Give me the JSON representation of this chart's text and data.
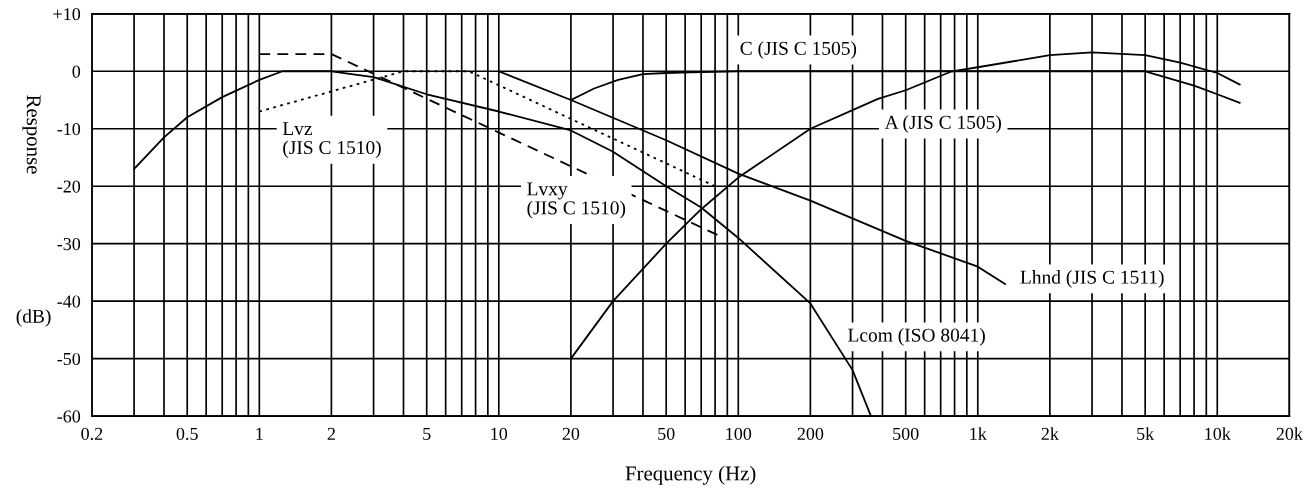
{
  "chart_data": {
    "type": "line",
    "xlabel": "Frequency (Hz)",
    "ylabel": "Response",
    "log": "x",
    "grid": true,
    "marker": "none",
    "xlim": [
      0.2,
      20000
    ],
    "ylim": [
      -60,
      10
    ],
    "xticks": [
      0.2,
      {
        "value": 0.3,
        "label": null
      },
      {
        "value": 0.4,
        "label": null
      },
      0.5,
      {
        "value": 0.6,
        "label": null
      },
      {
        "value": 0.7,
        "label": null
      },
      {
        "value": 0.8,
        "label": null
      },
      {
        "value": 0.9,
        "label": null
      },
      1,
      2,
      {
        "value": 3,
        "label": null
      },
      {
        "value": 4,
        "label": null
      },
      5,
      {
        "value": 6,
        "label": null
      },
      {
        "value": 7,
        "label": null
      },
      {
        "value": 8,
        "label": null
      },
      {
        "value": 9,
        "label": null
      },
      10,
      20,
      {
        "value": 30,
        "label": null
      },
      {
        "value": 40,
        "label": null
      },
      50,
      {
        "value": 60,
        "label": null
      },
      {
        "value": 70,
        "label": null
      },
      {
        "value": 80,
        "label": null
      },
      {
        "value": 90,
        "label": null
      },
      100,
      200,
      {
        "value": 300,
        "label": null
      },
      {
        "value": 400,
        "label": null
      },
      500,
      {
        "value": 600,
        "label": null
      },
      {
        "value": 700,
        "label": null
      },
      {
        "value": 800,
        "label": null
      },
      {
        "value": 900,
        "label": null
      },
      {
        "value": 1000,
        "label": "1k"
      },
      {
        "value": 2000,
        "label": "2k"
      },
      {
        "value": 3000,
        "label": null
      },
      {
        "value": 4000,
        "label": null
      },
      {
        "value": 5000,
        "label": "5k"
      },
      {
        "value": 6000,
        "label": null
      },
      {
        "value": 7000,
        "label": null
      },
      {
        "value": 8000,
        "label": null
      },
      {
        "value": 9000,
        "label": null
      },
      {
        "value": 10000,
        "label": "10k"
      },
      {
        "value": 20000,
        "label": "20k"
      }
    ],
    "yticks": [
      {
        "value": 10,
        "label": "+10"
      },
      0,
      -10,
      -20,
      -30,
      -40,
      -50,
      -60
    ],
    "series": [
      {
        "name": "Lcom (ISO 8041)",
        "color": "#000000",
        "line_style": "solid",
        "x": [
          0.3,
          0.4,
          0.5,
          0.7,
          1,
          1.25,
          2,
          3,
          5,
          10,
          20,
          30,
          50,
          70,
          100,
          200,
          300,
          358
        ],
        "values": [
          -17,
          -11.5,
          -8,
          -4.5,
          -1.5,
          0,
          0,
          -1,
          -4,
          -7,
          -10.3,
          -14,
          -20,
          -23.7,
          -29,
          -40.4,
          -52,
          -60
        ]
      },
      {
        "name": "Lhnd (JIS C 1511)",
        "color": "#000000",
        "line_style": "solid",
        "x": [
          10,
          20,
          50,
          100,
          200,
          500,
          1000,
          1300
        ],
        "values": [
          0,
          -5,
          -12,
          -17.8,
          -22.5,
          -29.5,
          -34,
          -37
        ]
      },
      {
        "name": "C (JIS C 1505)",
        "color": "#000000",
        "line_style": "solid",
        "x": [
          20,
          25,
          31.5,
          40,
          50,
          63,
          100,
          1000,
          5000,
          8000,
          10000,
          12400
        ],
        "values": [
          -5,
          -3,
          -1.5,
          -0.5,
          -0.3,
          -0.2,
          0,
          0,
          0,
          -2.5,
          -4,
          -5.5
        ]
      },
      {
        "name": "A (JIS C 1505)",
        "color": "#000000",
        "line_style": "solid",
        "x": [
          20,
          30,
          50,
          70,
          100,
          200,
          383,
          500,
          780,
          1000,
          2000,
          3000,
          5000,
          7000,
          10000,
          12400
        ],
        "values": [
          -50,
          -40,
          -30,
          -24,
          -18.5,
          -10,
          -4.8,
          -3.3,
          0,
          0.7,
          2.8,
          3.3,
          2.8,
          1.5,
          -0.3,
          -2.3
        ]
      },
      {
        "name": "Lvxy\n(JIS C 1510)",
        "color": "#000000",
        "line_style": "dashed",
        "x": [
          1,
          2,
          82
        ],
        "values": [
          3,
          3,
          -28.5
        ]
      },
      {
        "name": "Lvz\n(JIS C 1510)",
        "color": "#000000",
        "line_style": "dotted",
        "x": [
          1,
          4,
          7.5,
          80
        ],
        "values": [
          -7,
          0,
          0,
          -20
        ]
      }
    ],
    "annotations": [
      "(dB)"
    ]
  }
}
